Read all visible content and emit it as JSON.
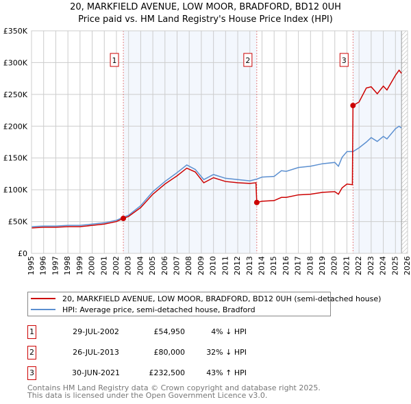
{
  "chart_data": {
    "type": "line",
    "title": "20, MARKFIELD AVENUE, LOW MOOR, BRADFORD, BD12 0UH",
    "subtitle": "Price paid vs. HM Land Registry's House Price Index (HPI)",
    "xlim": [
      1995,
      2026
    ],
    "ylim": [
      0,
      350000
    ],
    "x_ticks": [
      "1995",
      "1996",
      "1997",
      "1998",
      "1999",
      "2000",
      "2001",
      "2002",
      "2003",
      "2004",
      "2005",
      "2006",
      "2007",
      "2008",
      "2009",
      "2010",
      "2011",
      "2012",
      "2013",
      "2014",
      "2015",
      "2016",
      "2017",
      "2018",
      "2019",
      "2020",
      "2021",
      "2022",
      "2023",
      "2024",
      "2025",
      "2026"
    ],
    "y_ticks": [
      {
        "v": 0,
        "label": "£0"
      },
      {
        "v": 50000,
        "label": "£50K"
      },
      {
        "v": 100000,
        "label": "£100K"
      },
      {
        "v": 150000,
        "label": "£150K"
      },
      {
        "v": 200000,
        "label": "£200K"
      },
      {
        "v": 250000,
        "label": "£250K"
      },
      {
        "v": 300000,
        "label": "£300K"
      },
      {
        "v": 350000,
        "label": "£350K"
      }
    ],
    "grid": true,
    "series": [
      {
        "name": "20, MARKFIELD AVENUE, LOW MOOR, BRADFORD, BD12 0UH (semi-detached house)",
        "color": "#cc0000",
        "x": [
          1995,
          1996,
          1997,
          1998,
          1999,
          2000,
          2001,
          2002,
          2002.57,
          2003,
          2004,
          2005,
          2006,
          2007,
          2007.8,
          2008.5,
          2009.2,
          2010,
          2011,
          2012,
          2013,
          2013.5,
          2013.57,
          2014,
          2015,
          2015.6,
          2016,
          2017,
          2018,
          2019,
          2020,
          2020.3,
          2020.6,
          2021,
          2021.45,
          2021.5,
          2022,
          2022.6,
          2023,
          2023.5,
          2024,
          2024.3,
          2025,
          2025.3,
          2025.5
        ],
        "y": [
          40000,
          41000,
          41000,
          42000,
          42000,
          44000,
          46000,
          50000,
          54950,
          58000,
          72000,
          93000,
          109000,
          122000,
          134000,
          128000,
          111000,
          119000,
          113000,
          111000,
          110000,
          111000,
          80000,
          82000,
          83000,
          88000,
          88000,
          92000,
          93000,
          96000,
          97000,
          93000,
          103000,
          109000,
          108000,
          232500,
          238000,
          260000,
          262000,
          251000,
          263000,
          257000,
          280000,
          288000,
          283000
        ]
      },
      {
        "name": "HPI: Average price, semi-detached house, Bradford",
        "color": "#5b8fd0",
        "x": [
          1995,
          1996,
          1997,
          1998,
          1999,
          2000,
          2001,
          2002,
          2002.6,
          2003,
          2004,
          2005,
          2006,
          2007,
          2007.8,
          2008.5,
          2009.2,
          2010,
          2011,
          2012,
          2013,
          2013.6,
          2014,
          2015,
          2015.6,
          2016,
          2017,
          2018,
          2019,
          2020,
          2020.3,
          2020.6,
          2021,
          2021.5,
          2022,
          2022.6,
          2023,
          2023.5,
          2024,
          2024.3,
          2025,
          2025.3,
          2025.5
        ],
        "y": [
          42000,
          43000,
          43000,
          44000,
          44000,
          46000,
          48000,
          52000,
          57000,
          60000,
          75000,
          97000,
          113000,
          127000,
          139000,
          132000,
          116000,
          124000,
          118000,
          116000,
          114000,
          117000,
          120000,
          121000,
          130000,
          129000,
          135000,
          137000,
          141000,
          143000,
          137000,
          151000,
          160000,
          160000,
          166000,
          175000,
          182000,
          176000,
          184000,
          180000,
          196000,
          200000,
          197000
        ]
      }
    ],
    "sales": [
      {
        "num": "1",
        "x": 2002.57,
        "date": "29-JUL-2002",
        "price": "£54,950",
        "value": 54950,
        "hpi": "4% ↓ HPI"
      },
      {
        "num": "2",
        "x": 2013.57,
        "date": "26-JUL-2013",
        "price": "£80,000",
        "value": 80000,
        "hpi": "32% ↓ HPI"
      },
      {
        "num": "3",
        "x": 2021.5,
        "date": "30-JUN-2021",
        "price": "£232,500",
        "value": 232500,
        "hpi": "43% ↑ HPI"
      }
    ],
    "legend_position": "below"
  },
  "footer": {
    "line1": "Contains HM Land Registry data © Crown copyright and database right 2025.",
    "line2": "This data is licensed under the Open Government Licence v3.0."
  }
}
